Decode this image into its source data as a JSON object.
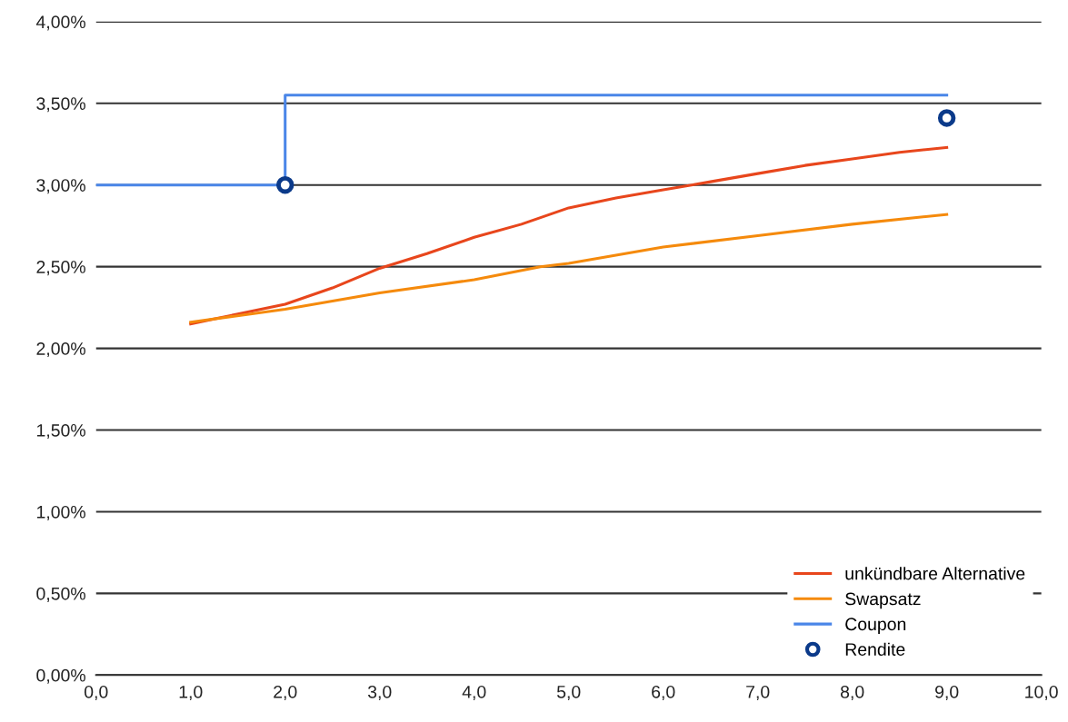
{
  "chart_data": {
    "type": "line",
    "series": [
      {
        "name": "unkündbare Alternative",
        "color": "#e8461c",
        "x": [
          1.0,
          1.5,
          2.0,
          2.5,
          3.0,
          3.5,
          4.0,
          4.5,
          5.0,
          5.5,
          6.0,
          6.5,
          7.0,
          7.5,
          8.0,
          8.5,
          9.0
        ],
        "values": [
          2.15,
          2.21,
          2.27,
          2.37,
          2.49,
          2.58,
          2.68,
          2.76,
          2.86,
          2.92,
          2.97,
          3.02,
          3.07,
          3.12,
          3.16,
          3.2,
          3.23
        ]
      },
      {
        "name": "Swapsatz",
        "color": "#f58a0c",
        "x": [
          1.0,
          2.0,
          3.0,
          4.0,
          4.7,
          5.0,
          6.0,
          7.0,
          8.0,
          9.0
        ],
        "values": [
          2.16,
          2.24,
          2.34,
          2.42,
          2.5,
          2.52,
          2.62,
          2.69,
          2.76,
          2.82
        ]
      },
      {
        "name": "Coupon",
        "type": "step",
        "color": "#4a86e8",
        "x": [
          0.0,
          2.0,
          9.0
        ],
        "values": [
          3.0,
          3.55,
          3.55
        ]
      },
      {
        "name": "Rendite",
        "type": "scatter",
        "color": "#0b3a8a",
        "marker": "circle",
        "x": [
          2.0,
          9.0
        ],
        "values": [
          3.0,
          3.41
        ]
      }
    ],
    "xlim": [
      0,
      10
    ],
    "xticks": [
      {
        "value": 0,
        "label": "0,0"
      },
      {
        "value": 1,
        "label": "1,0"
      },
      {
        "value": 2,
        "label": "2,0"
      },
      {
        "value": 3,
        "label": "3,0"
      },
      {
        "value": 4,
        "label": "4,0"
      },
      {
        "value": 5,
        "label": "5,0"
      },
      {
        "value": 6,
        "label": "6,0"
      },
      {
        "value": 7,
        "label": "7,0"
      },
      {
        "value": 8,
        "label": "8,0"
      },
      {
        "value": 9,
        "label": "9,0"
      },
      {
        "value": 10,
        "label": "10,0"
      }
    ],
    "ylim": [
      0,
      4
    ],
    "yticks": [
      {
        "value": 0,
        "label": "0,00%"
      },
      {
        "value": 0.5,
        "label": "0,50%"
      },
      {
        "value": 1,
        "label": "1,00%"
      },
      {
        "value": 1.5,
        "label": "1,50%"
      },
      {
        "value": 2,
        "label": "2,00%"
      },
      {
        "value": 2.5,
        "label": "2,50%"
      },
      {
        "value": 3,
        "label": "3,00%"
      },
      {
        "value": 3.5,
        "label": "3,50%"
      },
      {
        "value": 4,
        "label": "4,00%"
      }
    ],
    "grid": "y",
    "legend": "bottom right"
  }
}
